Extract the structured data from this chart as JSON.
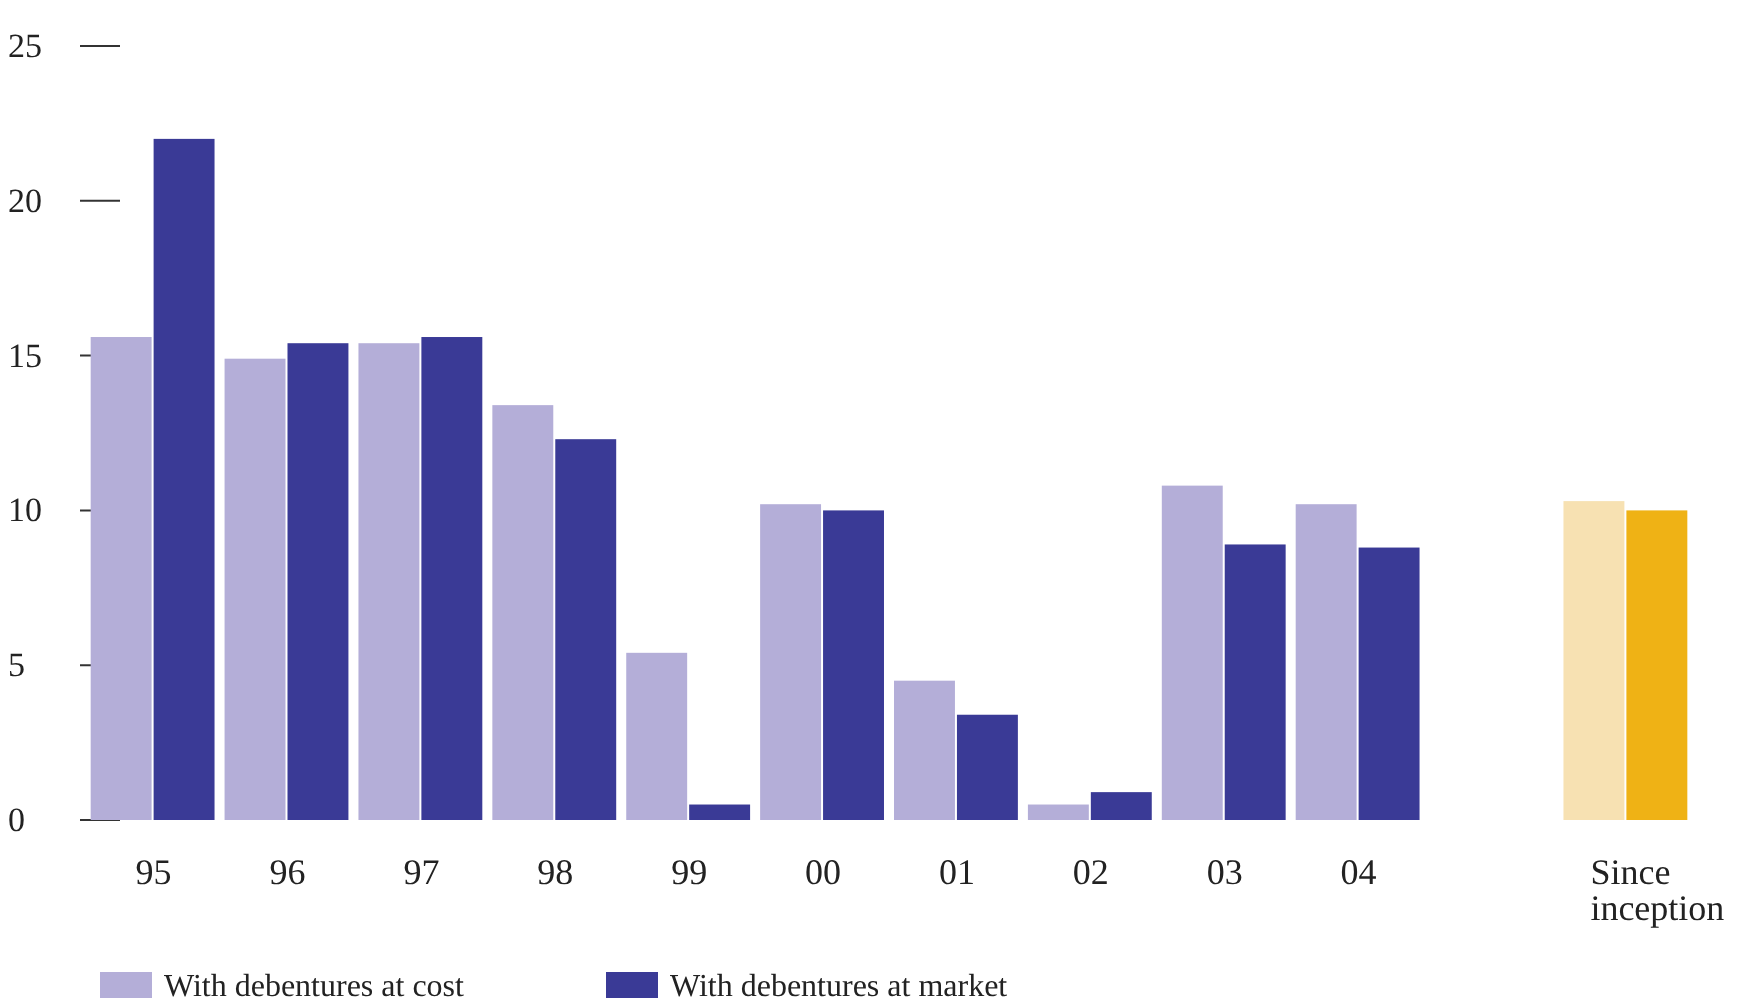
{
  "chart_data": {
    "type": "bar",
    "categories": [
      "95",
      "96",
      "97",
      "98",
      "99",
      "00",
      "01",
      "02",
      "03",
      "04",
      null,
      "Since inception"
    ],
    "series": [
      {
        "name": "With debentures at cost",
        "color": "#b4aed8",
        "colors": [
          "#b4aed8",
          "#b4aed8",
          "#b4aed8",
          "#b4aed8",
          "#b4aed8",
          "#b4aed8",
          "#b4aed8",
          "#b4aed8",
          "#b4aed8",
          "#b4aed8",
          null,
          "#f7e1b2"
        ],
        "values": [
          15.6,
          14.9,
          15.4,
          13.4,
          5.4,
          10.2,
          4.5,
          0.5,
          10.8,
          10.2,
          null,
          10.3
        ]
      },
      {
        "name": "With debentures at market",
        "color": "#3a3a96",
        "colors": [
          "#3a3a96",
          "#3a3a96",
          "#3a3a96",
          "#3a3a96",
          "#3a3a96",
          "#3a3a96",
          "#3a3a96",
          "#3a3a96",
          "#3a3a96",
          "#3a3a96",
          null,
          "#efb215"
        ],
        "values": [
          22.0,
          15.4,
          15.6,
          12.3,
          0.5,
          10.0,
          3.4,
          0.9,
          8.9,
          8.8,
          null,
          10.0
        ]
      }
    ],
    "ylim": [
      0,
      25
    ],
    "yticks": [
      0,
      5,
      10,
      15,
      20,
      25
    ],
    "grid": false,
    "legend": "bottom left"
  }
}
